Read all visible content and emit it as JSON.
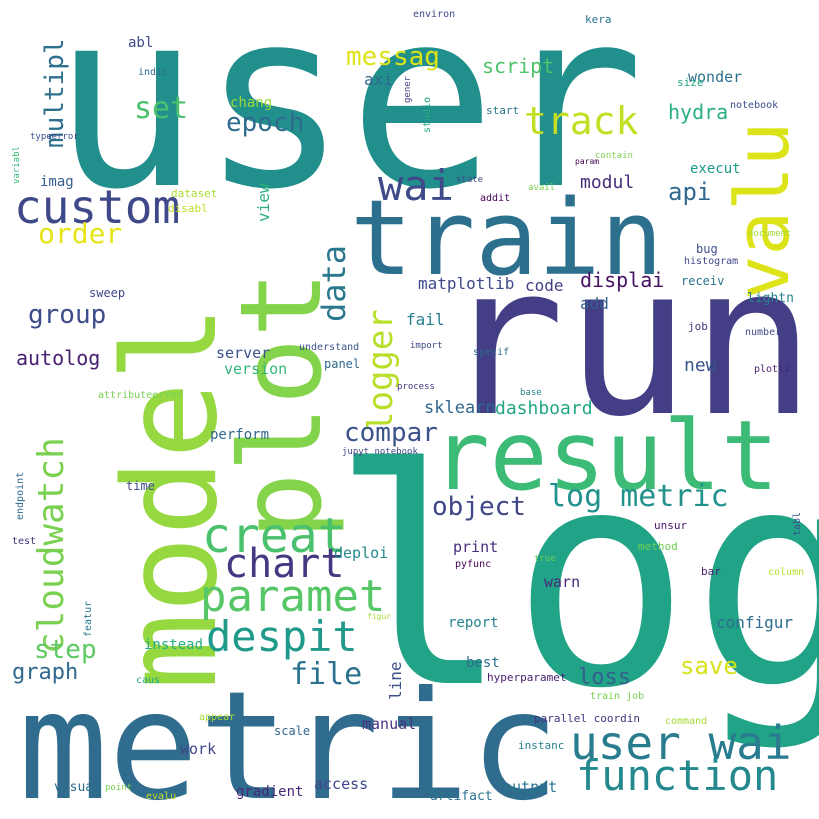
{
  "words": [
    {
      "text": "user",
      "color": "#218f8c"
    },
    {
      "text": "log",
      "color": "#20a386"
    },
    {
      "text": "run",
      "color": "#433e85"
    },
    {
      "text": "metric",
      "color": "#2f6c8e"
    },
    {
      "text": "model",
      "color": "#95d840"
    },
    {
      "text": "plot",
      "color": "#84d44b"
    },
    {
      "text": "train",
      "color": "#2d708e"
    },
    {
      "text": "result",
      "color": "#3bbb75"
    },
    {
      "text": "valu",
      "color": "#dce319"
    },
    {
      "text": "user wai",
      "color": "#287c8e"
    },
    {
      "text": "function",
      "color": "#23898e"
    },
    {
      "text": "creat",
      "color": "#4ac16d"
    },
    {
      "text": "paramet",
      "color": "#56c667"
    },
    {
      "text": "custom",
      "color": "#3f4889"
    },
    {
      "text": "despit",
      "color": "#1f9a8a"
    },
    {
      "text": "chart",
      "color": "#453781"
    },
    {
      "text": "cloudwatch",
      "color": "#7ad151"
    },
    {
      "text": "wai",
      "color": "#3e4a89"
    },
    {
      "text": "data",
      "color": "#2a788e"
    },
    {
      "text": "logger",
      "color": "#b8de29"
    },
    {
      "text": "track",
      "color": "#c2df23"
    },
    {
      "text": "log metric",
      "color": "#21918c"
    },
    {
      "text": "compar",
      "color": "#3b528b"
    },
    {
      "text": "object",
      "color": "#404688"
    },
    {
      "text": "file",
      "color": "#2c728e"
    },
    {
      "text": "epoch",
      "color": "#2f6b8e"
    },
    {
      "text": "set",
      "color": "#4ac16d"
    },
    {
      "text": "order",
      "color": "#e5e419"
    },
    {
      "text": "group",
      "color": "#3e4c8a"
    },
    {
      "text": "step",
      "color": "#5ec962"
    },
    {
      "text": "multipl",
      "color": "#2e6f8e"
    },
    {
      "text": "messag",
      "color": "#dde318"
    },
    {
      "text": "save",
      "color": "#d8e219"
    },
    {
      "text": "loss",
      "color": "#355f8d"
    },
    {
      "text": "api",
      "color": "#31688e"
    },
    {
      "text": "autolog",
      "color": "#482173"
    },
    {
      "text": "graph",
      "color": "#31688e"
    },
    {
      "text": "script",
      "color": "#4ec36b"
    },
    {
      "text": "hydra",
      "color": "#29af7f"
    },
    {
      "text": "modul",
      "color": "#472d7b"
    },
    {
      "text": "displai",
      "color": "#471164"
    },
    {
      "text": "dashboard",
      "color": "#22a785"
    },
    {
      "text": "sklearn",
      "color": "#31688e"
    },
    {
      "text": "matplotlib",
      "color": "#3e4989"
    },
    {
      "text": "code",
      "color": "#424086"
    },
    {
      "text": "fail",
      "color": "#277f8e"
    },
    {
      "text": "add",
      "color": "#355e8d"
    },
    {
      "text": "new",
      "color": "#3a538b"
    },
    {
      "text": "configur",
      "color": "#2e6e8e"
    },
    {
      "text": "view",
      "color": "#2db27d"
    },
    {
      "text": "line",
      "color": "#3b518b"
    },
    {
      "text": "server",
      "color": "#3b528b"
    },
    {
      "text": "version",
      "color": "#35b779"
    },
    {
      "text": "axi",
      "color": "#31688e"
    },
    {
      "text": "wonder",
      "color": "#2d708e"
    },
    {
      "text": "execut",
      "color": "#1e9b8a"
    },
    {
      "text": "imag",
      "color": "#355f8d"
    },
    {
      "text": "abl",
      "color": "#3e4989"
    },
    {
      "text": "chang",
      "color": "#9bd93c"
    },
    {
      "text": "perform",
      "color": "#31678e"
    },
    {
      "text": "instead",
      "color": "#28ae80"
    },
    {
      "text": "print",
      "color": "#472f7d"
    },
    {
      "text": "warn",
      "color": "#472a7a"
    },
    {
      "text": "deploi",
      "color": "#23898e"
    },
    {
      "text": "report",
      "color": "#25848e"
    },
    {
      "text": "best",
      "color": "#2e6e8e"
    },
    {
      "text": "work",
      "color": "#3f4788"
    },
    {
      "text": "manual",
      "color": "#46337e"
    },
    {
      "text": "gradient",
      "color": "#482878"
    },
    {
      "text": "access",
      "color": "#3f4889"
    },
    {
      "text": "output",
      "color": "#2a768e"
    },
    {
      "text": "visual",
      "color": "#2e6d8e"
    },
    {
      "text": "artifact",
      "color": "#2c728e"
    },
    {
      "text": "parallel coordin",
      "color": "#46337e"
    },
    {
      "text": "hyperparamet",
      "color": "#481d6f"
    },
    {
      "text": "lightn",
      "color": "#26828e"
    },
    {
      "text": "bug",
      "color": "#3d4d8a"
    },
    {
      "text": "histogram",
      "color": "#3f4889"
    },
    {
      "text": "receiv",
      "color": "#2c738e"
    },
    {
      "text": "notebook",
      "color": "#3e4c8a"
    },
    {
      "text": "number",
      "color": "#3e4a89"
    },
    {
      "text": "job",
      "color": "#453882"
    },
    {
      "text": "plotli",
      "color": "#481f70"
    },
    {
      "text": "document",
      "color": "#9fda3a"
    },
    {
      "text": "column",
      "color": "#b5de2b"
    },
    {
      "text": "bar",
      "color": "#482475"
    },
    {
      "text": "method",
      "color": "#70cf57"
    },
    {
      "text": "true",
      "color": "#6ccd5a"
    },
    {
      "text": "pyfunc",
      "color": "#440154"
    },
    {
      "text": "unsur",
      "color": "#481668"
    },
    {
      "text": "tabl",
      "color": "#3b528b"
    },
    {
      "text": "kera",
      "color": "#2a778e"
    },
    {
      "text": "environ",
      "color": "#3e4989"
    },
    {
      "text": "gener",
      "color": "#414487"
    },
    {
      "text": "studio",
      "color": "#25ab82"
    },
    {
      "text": "start",
      "color": "#2a788e"
    },
    {
      "text": "size",
      "color": "#22a884"
    },
    {
      "text": "param",
      "color": "#440154"
    },
    {
      "text": "contain",
      "color": "#7fd34e"
    },
    {
      "text": "state",
      "color": "#3e4989"
    },
    {
      "text": "avail",
      "color": "#7ad151"
    },
    {
      "text": "addit",
      "color": "#440154"
    },
    {
      "text": "indic",
      "color": "#31688e"
    },
    {
      "text": "typeerror",
      "color": "#3e4989"
    },
    {
      "text": "variabl",
      "color": "#35b779"
    },
    {
      "text": "dataset",
      "color": "#a8db34"
    },
    {
      "text": "disabl",
      "color": "#c2df23"
    },
    {
      "text": "sweep",
      "color": "#3e4989"
    },
    {
      "text": "understand",
      "color": "#3b528b"
    },
    {
      "text": "import",
      "color": "#3e4989"
    },
    {
      "text": "specif",
      "color": "#31688e"
    },
    {
      "text": "panel",
      "color": "#31688e"
    },
    {
      "text": "process",
      "color": "#46337e"
    },
    {
      "text": "base",
      "color": "#26828e"
    },
    {
      "text": "jupyt notebook",
      "color": "#414487"
    },
    {
      "text": "attributeerror",
      "color": "#7ad151"
    },
    {
      "text": "time",
      "color": "#3e4989"
    },
    {
      "text": "endpoint",
      "color": "#31688e"
    },
    {
      "text": "test",
      "color": "#46337e"
    },
    {
      "text": "featur",
      "color": "#2a788e"
    },
    {
      "text": "figur",
      "color": "#a8db34"
    },
    {
      "text": "caus",
      "color": "#22a884"
    },
    {
      "text": "train job",
      "color": "#7ad151"
    },
    {
      "text": "command",
      "color": "#a8db34"
    },
    {
      "text": "appear",
      "color": "#a8db34"
    },
    {
      "text": "scale",
      "color": "#31688e"
    },
    {
      "text": "instanc",
      "color": "#26828e"
    },
    {
      "text": "point",
      "color": "#7ad151"
    },
    {
      "text": "evalu",
      "color": "#c2df23"
    }
  ]
}
